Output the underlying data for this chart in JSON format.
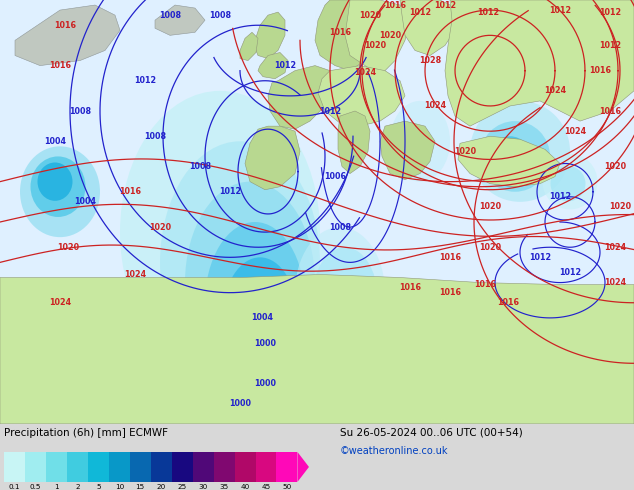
{
  "title_left": "Precipitation (6h) [mm] ECMWF",
  "title_right": "Su 26-05-2024 00..06 UTC (00+54)",
  "credit": "©weatheronline.co.uk",
  "colorbar_values": [
    0.1,
    0.5,
    1,
    2,
    5,
    10,
    15,
    20,
    25,
    30,
    35,
    40,
    45,
    50
  ],
  "colorbar_colors": [
    "#c8f5f5",
    "#a0edf0",
    "#70dfe8",
    "#40cce0",
    "#10b8d8",
    "#0898c8",
    "#0868b0",
    "#083898",
    "#180880",
    "#500878",
    "#800870",
    "#b00868",
    "#d80880",
    "#ff08b8"
  ],
  "fig_width": 6.34,
  "fig_height": 4.9,
  "dpi": 100,
  "bottom_bg_color": "#d8d8d8",
  "sea_color": "#e8f8ff",
  "ocean_west_color": "#e0f0ff",
  "land_green_color": "#b8d890",
  "land_light_green": "#c8e8a0",
  "precip_light1": "#d0f0f8",
  "precip_light2": "#a8e4f0",
  "precip_med1": "#70d0e8",
  "precip_med2": "#38b8e0",
  "precip_dark1": "#1898d0",
  "precip_dark2": "#0870b8",
  "precip_deep": "#0848a0",
  "precip_darkest": "#083080",
  "gray_land": "#c0c8c0",
  "contour_blue": "#2222cc",
  "contour_red": "#cc2222",
  "text_color": "#000000",
  "credit_color": "#0040c0"
}
